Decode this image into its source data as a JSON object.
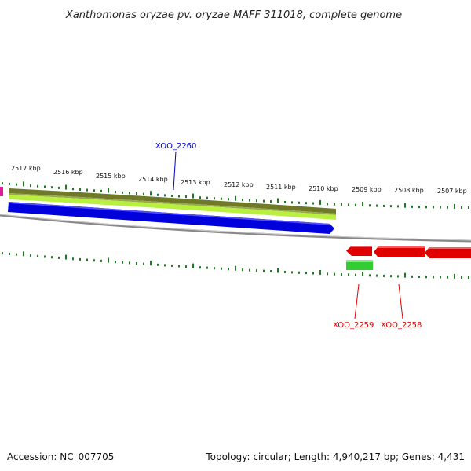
{
  "title": "Xanthomonas oryzae pv. oryzae MAFF 311018, complete genome",
  "footer": {
    "accession": "Accession: NC_007705",
    "info": "Topology: circular; Length: 4,940,217 bp; Genes: 4,431"
  },
  "kbp_ticks": [
    "2517 kbp",
    "2516 kbp",
    "2515 kbp",
    "2514 kbp",
    "2513 kbp",
    "2512 kbp",
    "2511 kbp",
    "2510 kbp",
    "2509 kbp",
    "2508 kbp",
    "2507 kbp"
  ],
  "genes": [
    {
      "id": "XOO_2260",
      "color": "#0000cc",
      "strand": "forward"
    },
    {
      "id": "XOO_2259",
      "color": "#dd0000",
      "strand": "reverse"
    },
    {
      "id": "XOO_2258",
      "color": "#dd0000",
      "strand": "reverse"
    }
  ],
  "colors": {
    "forward_gene": "#0000dd",
    "reverse_gene": "#ee0000",
    "olive_track": "#6e7a28",
    "lime_track": "#b8f040",
    "green_feature": "#33cc33",
    "tick_green": "#1f7a1f",
    "backbone": "#888888"
  }
}
